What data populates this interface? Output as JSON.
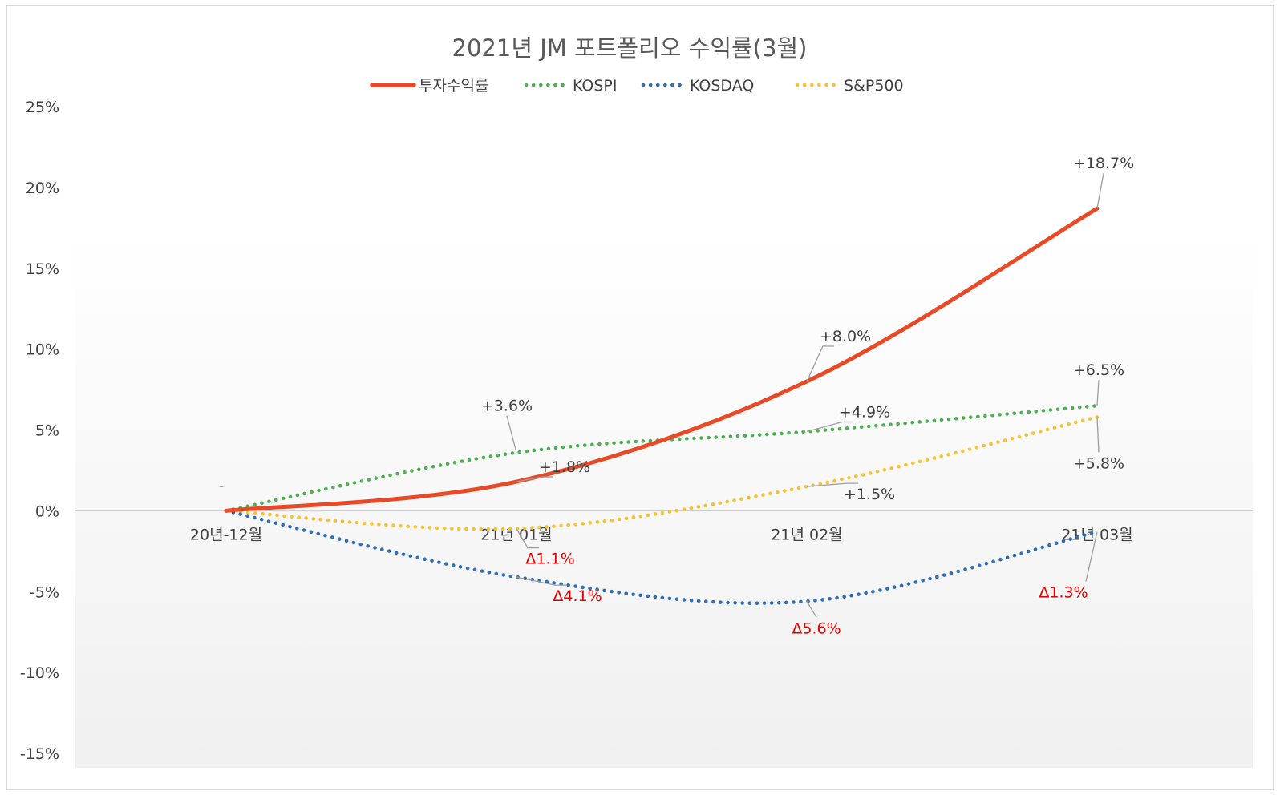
{
  "chart_data": {
    "type": "line",
    "title": "2021년 JM 포트폴리오 수익률(3월)",
    "categories": [
      "20년-12월",
      "21년 01월",
      "21년 02월",
      "21년 03월"
    ],
    "y_ticks": [
      "25%",
      "20%",
      "15%",
      "10%",
      "5%",
      "0%",
      "-5%",
      "-10%",
      "-15%"
    ],
    "ylim": [
      -15,
      25
    ],
    "legend_position": "top",
    "series": [
      {
        "name": "투자수익률",
        "color": "#e84a27",
        "style": "solid",
        "values": [
          0,
          1.8,
          8.0,
          18.7
        ],
        "labels": [
          "",
          "+1.8%",
          "+8.0%",
          "+18.7%"
        ]
      },
      {
        "name": "KOSPI",
        "color": "#4caf50",
        "style": "dotted",
        "values": [
          0,
          3.6,
          4.9,
          6.5
        ],
        "labels": [
          "",
          "+3.6%",
          "+4.9%",
          "+6.5%"
        ]
      },
      {
        "name": "KOSDAQ",
        "color": "#2f6db5",
        "style": "dotted",
        "values": [
          0,
          -4.1,
          -5.6,
          -1.3
        ],
        "labels": [
          "",
          "Δ4.1%",
          "Δ5.6%",
          "Δ1.3%"
        ]
      },
      {
        "name": "S&P500",
        "color": "#f5c230",
        "style": "dotted",
        "values": [
          0,
          -1.1,
          1.5,
          5.8
        ],
        "labels": [
          "",
          "Δ1.1%",
          "+1.5%",
          "+5.8%"
        ]
      }
    ],
    "start_label": "-",
    "negative_label_color": "#e00000",
    "positive_label_color": "#404040"
  }
}
